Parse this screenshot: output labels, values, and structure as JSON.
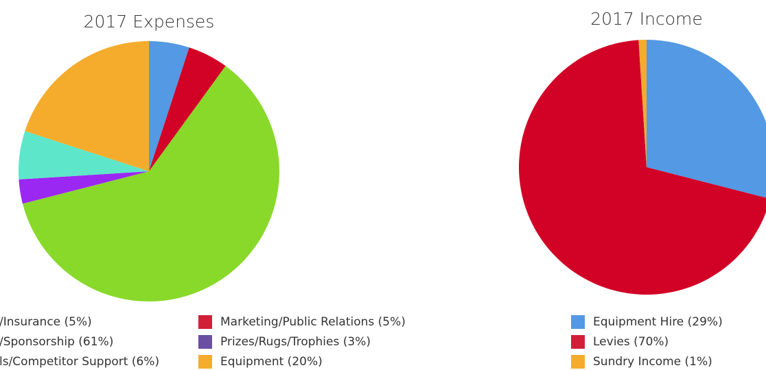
{
  "chart_data": [
    {
      "type": "pie",
      "title": "2017 Expenses",
      "slices": [
        {
          "label": "/Insurance (5%)",
          "value": 5,
          "color": "#5499e3"
        },
        {
          "label": "Marketing/Public Relations (5%)",
          "value": 5,
          "color": "#d20226"
        },
        {
          "label": "/Sponsorship (61%)",
          "value": 61,
          "color": "#88d92a"
        },
        {
          "label": "Prizes/Rugs/Trophies (3%)",
          "value": 3,
          "color": "#9b27f3"
        },
        {
          "label": "ls/Competitor Support (6%)",
          "value": 6,
          "color": "#5de6c9"
        },
        {
          "label": "Equipment (20%)",
          "value": 20,
          "color": "#f5ac2d"
        }
      ],
      "legend": [
        {
          "label": "/Insurance (5%)",
          "color": "#5499e3"
        },
        {
          "label": "Marketing/Public Relations (5%)",
          "color": "#d21f39"
        },
        {
          "label": "/Sponsorship (61%)",
          "color": "#88d92a"
        },
        {
          "label": "Prizes/Rugs/Trophies (3%)",
          "color": "#6a4fa3"
        },
        {
          "label": "ls/Competitor Support (6%)",
          "color": "#5de6c9"
        },
        {
          "label": "Equipment (20%)",
          "color": "#f5ac2d"
        }
      ],
      "legend_placement": "bottom"
    },
    {
      "type": "pie",
      "title": "2017 Income",
      "slices": [
        {
          "label": "Equipment Hire (29%)",
          "value": 29,
          "color": "#5499e3"
        },
        {
          "label": "Levies (70%)",
          "value": 70,
          "color": "#d20226"
        },
        {
          "label": "Sundry Income (1%)",
          "value": 1,
          "color": "#f5ac2d"
        }
      ],
      "legend": [
        {
          "label": "Equipment Hire (29%)",
          "color": "#5499e3"
        },
        {
          "label": "Levies (70%)",
          "color": "#d21f39"
        },
        {
          "label": "Sundry Income (1%)",
          "color": "#f5ac2d"
        }
      ],
      "legend_placement": "bottom"
    }
  ]
}
